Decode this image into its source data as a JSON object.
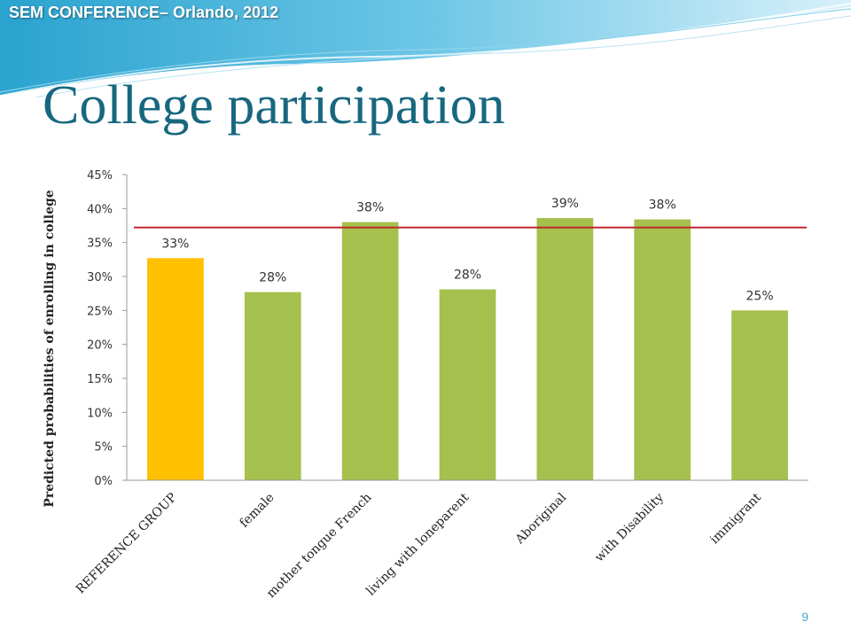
{
  "header": {
    "conference": "SEM CONFERENCE– Orlando, 2012"
  },
  "slide": {
    "title": "College participation",
    "page_number": "9"
  },
  "colors": {
    "reference_bar": "#FFC000",
    "group_bar": "#A5C04D",
    "reference_line": "#C0282C",
    "title": "#17687F"
  },
  "chart_data": {
    "type": "bar",
    "title": "",
    "xlabel": "",
    "ylabel": "Predicted probabilities of enrolling in college",
    "categories": [
      "REFERENCE GROUP",
      "female",
      "mother tongue French",
      "living with loneparent",
      "Aboriginal",
      "with Disability",
      "immigrant"
    ],
    "values": [
      0.327,
      0.277,
      0.38,
      0.281,
      0.386,
      0.384,
      0.25
    ],
    "data_labels": [
      "33%",
      "28%",
      "38%",
      "28%",
      "39%",
      "38%",
      "25%"
    ],
    "bar_colors": [
      "#FFC000",
      "#A5C04D",
      "#A5C04D",
      "#A5C04D",
      "#A5C04D",
      "#A5C04D",
      "#A5C04D"
    ],
    "reference_line_value": 0.372,
    "ylim": [
      0,
      0.45
    ],
    "yticks": [
      0,
      0.05,
      0.1,
      0.15,
      0.2,
      0.25,
      0.3,
      0.35,
      0.4,
      0.45
    ],
    "ytick_labels": [
      "0%",
      "5%",
      "10%",
      "15%",
      "20%",
      "25%",
      "30%",
      "35%",
      "40%",
      "45%"
    ],
    "grid": false,
    "legend": "none"
  }
}
